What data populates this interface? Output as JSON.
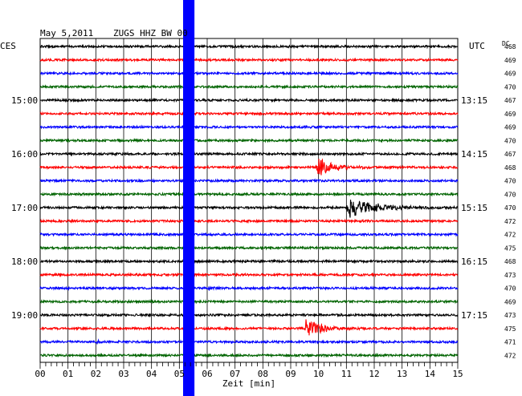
{
  "header": {
    "date": "May 5,2011",
    "station": "ZUGS HHZ BW 00",
    "left_zone": "CES",
    "right_zone": "UTC",
    "dc_label": "DC"
  },
  "chart_data": {
    "type": "line",
    "title": "May 5,2011  ZUGS HHZ BW 00",
    "xlabel": "Zeit [min]",
    "xlim": [
      0,
      15
    ],
    "x_ticks": [
      "00",
      "01",
      "02",
      "03",
      "04",
      "05",
      "06",
      "07",
      "08",
      "09",
      "10",
      "11",
      "12",
      "13",
      "14",
      "15"
    ],
    "trace_colors": [
      "#000000",
      "#ff0000",
      "#0000ff",
      "#006400"
    ],
    "left_time_labels": [
      {
        "trace": 4,
        "label": "15:00"
      },
      {
        "trace": 8,
        "label": "16:00"
      },
      {
        "trace": 12,
        "label": "17:00"
      },
      {
        "trace": 16,
        "label": "18:00"
      },
      {
        "trace": 20,
        "label": "19:00"
      }
    ],
    "right_time_labels": [
      {
        "trace": 4,
        "label": "13:15"
      },
      {
        "trace": 8,
        "label": "14:15"
      },
      {
        "trace": 12,
        "label": "15:15"
      },
      {
        "trace": 16,
        "label": "16:15"
      },
      {
        "trace": 20,
        "label": "17:15"
      }
    ],
    "dc_offsets": [
      "468",
      "469",
      "469",
      "470",
      "467",
      "469",
      "469",
      "470",
      "467",
      "468",
      "470",
      "470",
      "470",
      "472",
      "472",
      "475",
      "468",
      "473",
      "470",
      "469",
      "473",
      "475",
      "471",
      "472"
    ],
    "data_gap": {
      "x_start": 5.25,
      "x_end": 5.6
    },
    "events": [
      {
        "trace": 9,
        "onset_min": 9.9,
        "amplitude": 1.0,
        "duration_min": 2.2
      },
      {
        "trace": 12,
        "onset_min": 11.0,
        "amplitude": 1.0,
        "duration_min": 4.0
      },
      {
        "trace": 21,
        "onset_min": 9.5,
        "amplitude": 1.0,
        "duration_min": 2.5
      },
      {
        "trace": 18,
        "onset_min": 6.0,
        "amplitude": 0.3,
        "duration_min": 0.8
      },
      {
        "trace": 22,
        "onset_min": 2.0,
        "amplitude": 0.25,
        "duration_min": 0.4
      }
    ]
  }
}
